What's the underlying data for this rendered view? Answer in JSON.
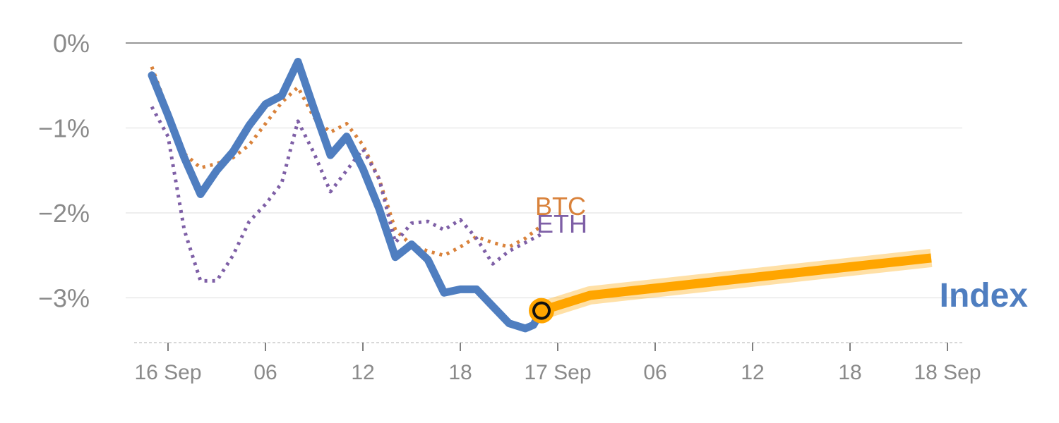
{
  "chart_data": {
    "type": "line",
    "title": "",
    "xlabel": "",
    "ylabel": "",
    "ylim": [
      -3.55,
      0
    ],
    "y_ticks": [
      {
        "value": 0,
        "label": "0%"
      },
      {
        "value": -1,
        "label": "−1%"
      },
      {
        "value": -2,
        "label": "−2%"
      },
      {
        "value": -3,
        "label": "−3%"
      }
    ],
    "x_ticks": [
      {
        "hour": 0,
        "label": "16 Sep"
      },
      {
        "hour": 6,
        "label": "06"
      },
      {
        "hour": 12,
        "label": "12"
      },
      {
        "hour": 18,
        "label": "18"
      },
      {
        "hour": 24,
        "label": "17 Sep"
      },
      {
        "hour": 30,
        "label": "06"
      },
      {
        "hour": 36,
        "label": "12"
      },
      {
        "hour": 42,
        "label": "18"
      },
      {
        "hour": 48,
        "label": "18 Sep"
      }
    ],
    "grid": true,
    "series": [
      {
        "name": "BTC",
        "style": "dotted",
        "color": "#d9823b",
        "x": [
          -1,
          0,
          1,
          2,
          3,
          4,
          5,
          6,
          7,
          8,
          9,
          10,
          11,
          12,
          13,
          14,
          15,
          16,
          17,
          18,
          19,
          20,
          21,
          22,
          23
        ],
        "y": [
          -0.28,
          -0.8,
          -1.3,
          -1.47,
          -1.42,
          -1.35,
          -1.2,
          -0.95,
          -0.7,
          -0.52,
          -0.88,
          -1.05,
          -0.95,
          -1.2,
          -1.6,
          -2.2,
          -2.38,
          -2.45,
          -2.5,
          -2.4,
          -2.28,
          -2.35,
          -2.4,
          -2.3,
          -2.15
        ]
      },
      {
        "name": "ETH",
        "style": "dotted",
        "color": "#7e5fa6",
        "x": [
          -1,
          0,
          1,
          2,
          3,
          4,
          5,
          6,
          7,
          8,
          9,
          10,
          11,
          12,
          13,
          14,
          15,
          16,
          17,
          18,
          19,
          20,
          21,
          22,
          23
        ],
        "y": [
          -0.75,
          -1.1,
          -2.2,
          -2.8,
          -2.8,
          -2.5,
          -2.1,
          -1.9,
          -1.65,
          -0.92,
          -1.3,
          -1.75,
          -1.5,
          -1.25,
          -1.6,
          -2.35,
          -2.12,
          -2.1,
          -2.2,
          -2.08,
          -2.3,
          -2.6,
          -2.45,
          -2.35,
          -2.25
        ]
      },
      {
        "name": "Index",
        "style": "solid",
        "color": "#4f7ec0",
        "x": [
          -1,
          0,
          1,
          2,
          3,
          4,
          5,
          6,
          7,
          8,
          9,
          10,
          11,
          12,
          13,
          14,
          15,
          16,
          17,
          18,
          19,
          20,
          21,
          22,
          22.5,
          23
        ],
        "y": [
          -0.38,
          -0.85,
          -1.35,
          -1.78,
          -1.5,
          -1.28,
          -0.97,
          -0.72,
          -0.62,
          -0.22,
          -0.78,
          -1.32,
          -1.1,
          -1.48,
          -1.95,
          -2.52,
          -2.37,
          -2.55,
          -2.94,
          -2.9,
          -2.9,
          -3.1,
          -3.3,
          -3.36,
          -3.32,
          -3.15
        ]
      }
    ],
    "forecast": {
      "series": "Index",
      "color": "#ffa500",
      "x": [
        23,
        26,
        47
      ],
      "y": [
        -3.15,
        -2.97,
        -2.53
      ]
    },
    "marker": {
      "x": 23,
      "y": -3.15
    },
    "colors": {
      "btc": "#d9823b",
      "eth": "#7e5fa6",
      "index": "#4f7ec0",
      "forecast": "#ffa500",
      "tick_text": "#8a8a8a"
    }
  }
}
